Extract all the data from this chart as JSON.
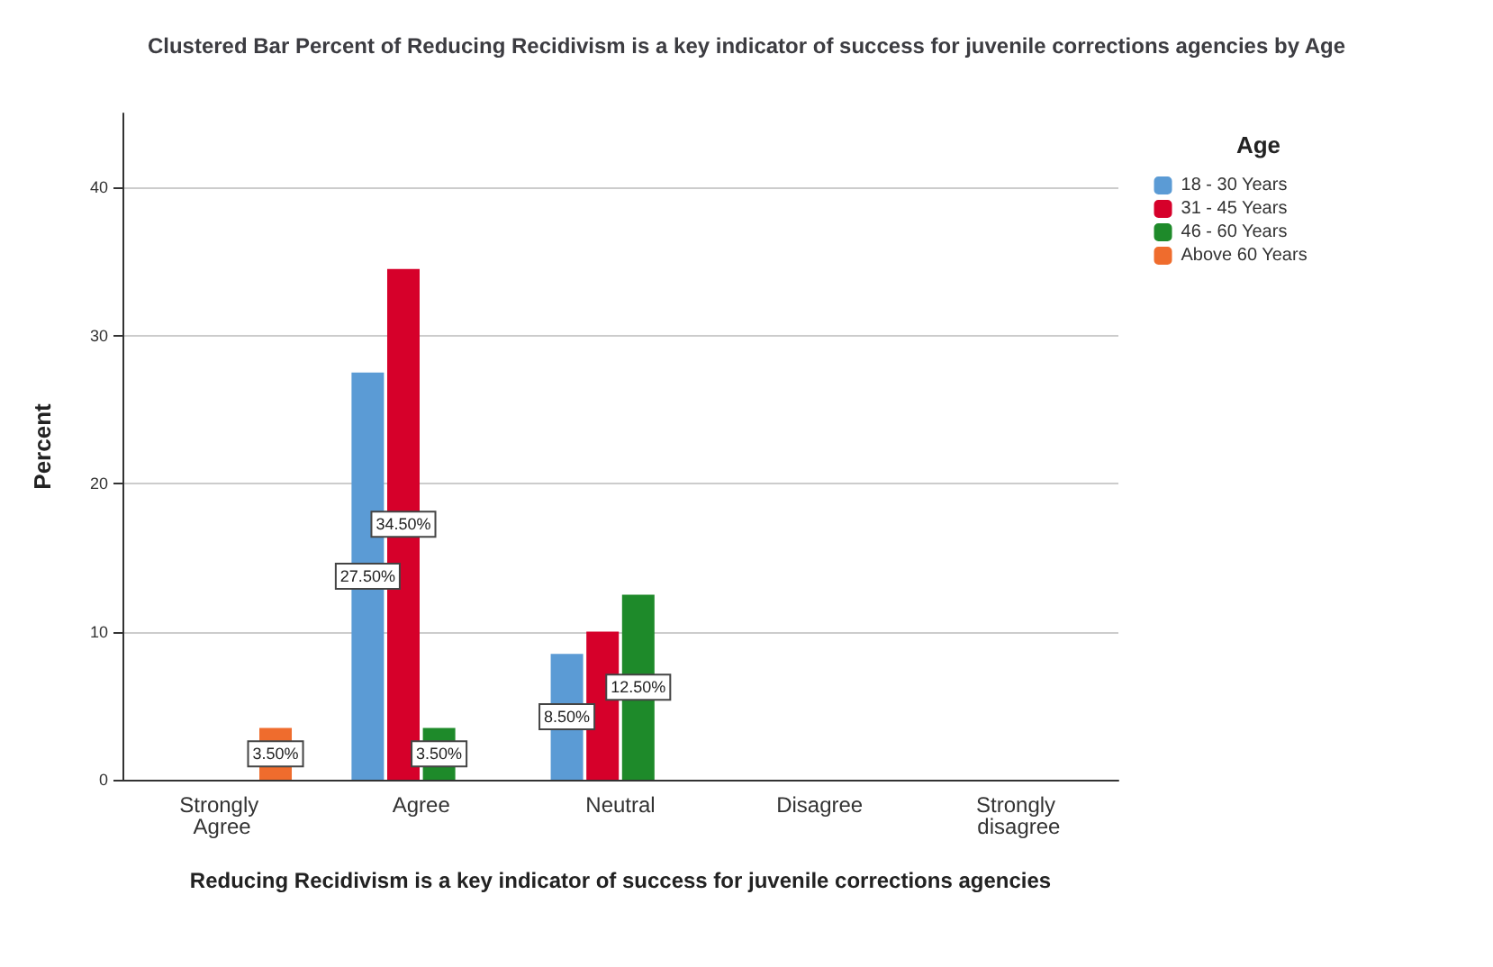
{
  "chart_data": {
    "type": "bar",
    "title": "Clustered Bar Percent of Reducing Recidivism is a key indicator of success for juvenile corrections agencies by Age",
    "xlabel": "Reducing Recidivism is a key indicator of success for juvenile corrections agencies",
    "ylabel": "Percent",
    "legend_title": "Age",
    "categories": [
      "Strongly Agree",
      "Agree",
      "Neutral",
      "Disagree",
      "Strongly disagree"
    ],
    "series": [
      {
        "name": "18 - 30 Years",
        "color": "#5b9bd5",
        "values": [
          null,
          27.5,
          8.5,
          null,
          null
        ],
        "value_labels": [
          null,
          "27.50%",
          "8.50%",
          null,
          null
        ]
      },
      {
        "name": "31 - 45 Years",
        "color": "#d6002a",
        "values": [
          null,
          34.5,
          10,
          null,
          null
        ],
        "value_labels": [
          null,
          "34.50%",
          null,
          null,
          null
        ]
      },
      {
        "name": "46 - 60 Years",
        "color": "#1e8a2a",
        "values": [
          null,
          3.5,
          12.5,
          null,
          null
        ],
        "value_labels": [
          null,
          "3.50%",
          "12.50%",
          null,
          null
        ]
      },
      {
        "name": "Above 60 Years",
        "color": "#ef6c2d",
        "values": [
          3.5,
          null,
          null,
          null,
          null
        ],
        "value_labels": [
          "3.50%",
          null,
          null,
          null,
          null
        ]
      }
    ],
    "ylim": [
      0,
      45
    ],
    "yticks": [
      0,
      10,
      20,
      30,
      40
    ],
    "grid": "y",
    "legend": "top right"
  }
}
